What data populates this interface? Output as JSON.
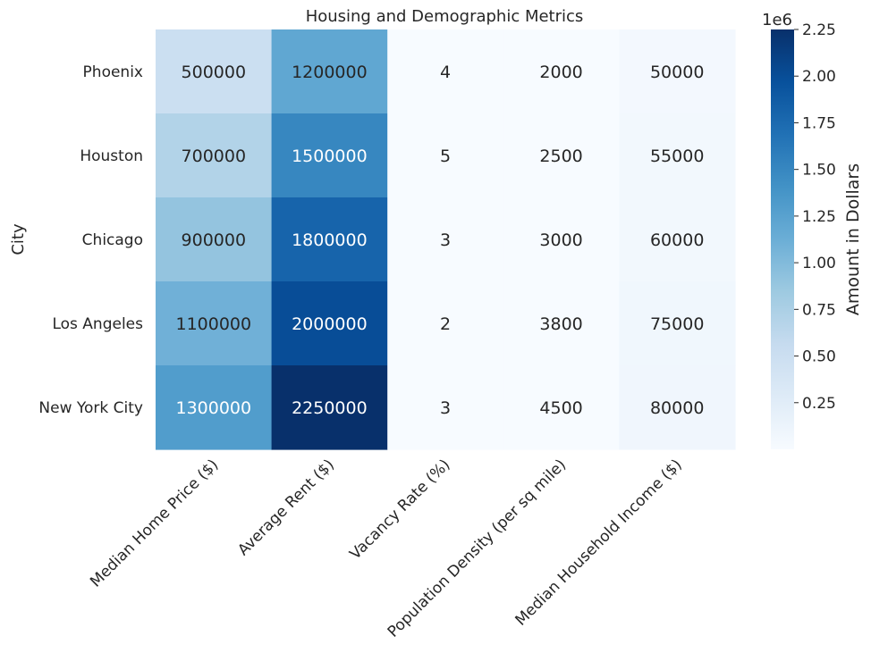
{
  "chart_data": {
    "type": "heatmap",
    "title": "Housing and Demographic Metrics",
    "ylabel": "City",
    "xlabel": "",
    "rows": [
      "Phoenix",
      "Houston",
      "Chicago",
      "Los Angeles",
      "New York City"
    ],
    "columns": [
      "Median Home Price ($)",
      "Average Rent ($)",
      "Vacancy Rate (%)",
      "Population Density (per sq mile)",
      "Median Household Income ($)"
    ],
    "values": [
      [
        500000,
        1200000,
        4,
        2000,
        50000
      ],
      [
        700000,
        1500000,
        5,
        2500,
        55000
      ],
      [
        900000,
        1800000,
        3,
        3000,
        60000
      ],
      [
        1100000,
        2000000,
        2,
        3800,
        75000
      ],
      [
        1300000,
        2250000,
        3,
        4500,
        80000
      ]
    ],
    "colorbar": {
      "label": "Amount in Dollars",
      "offset_label": "1e6",
      "scale_factor": 1000000,
      "range": [
        2,
        2250000
      ],
      "ticks": [
        0.25,
        0.5,
        0.75,
        1.0,
        1.25,
        1.5,
        1.75,
        2.0,
        2.25
      ],
      "tick_labels": [
        "0.25",
        "0.50",
        "0.75",
        "1.00",
        "1.25",
        "1.50",
        "1.75",
        "2.00",
        "2.25"
      ],
      "colormap": "Blues"
    },
    "grid": false,
    "annotations": true
  }
}
